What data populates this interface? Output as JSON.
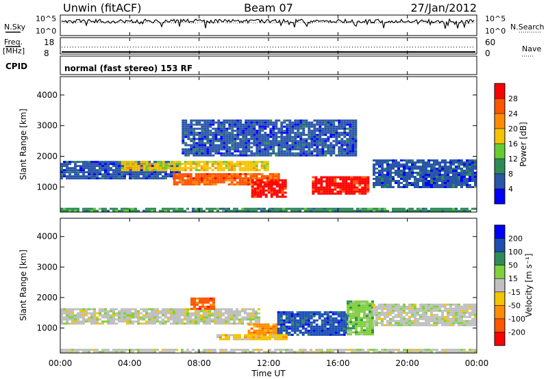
{
  "header": {
    "station": "Unwin (fitACF)",
    "beam": "Beam 07",
    "date": "27/Jan/2012"
  },
  "noise_panel": {
    "left_label": "N.Sky",
    "right_label": "N.Search",
    "left_ticks": [
      "10^5",
      "10^0"
    ],
    "right_ticks": [
      "10^5",
      "10^0"
    ]
  },
  "freq_panel": {
    "left_label": "Freq.",
    "left_unit": "[MHz]",
    "right_label": "Nave",
    "left_ticks": [
      "18",
      "8"
    ],
    "right_ticks": [
      "60",
      "0"
    ],
    "left_range": [
      8,
      18
    ],
    "right_range": [
      0,
      60
    ],
    "freq_value": 12,
    "nave_value": 0
  },
  "cpid": {
    "label": "CPID",
    "text": "normal (fast stereo) 153 RF"
  },
  "x_axis": {
    "label": "Time UT",
    "ticks": [
      "00:00",
      "04:00",
      "08:00",
      "12:00",
      "16:00",
      "20:00",
      "00:00"
    ],
    "tick_hours": [
      0,
      4,
      8,
      12,
      16,
      20,
      24
    ],
    "range": [
      0,
      24
    ]
  },
  "chart_data": [
    {
      "type": "heatmap",
      "name": "power",
      "ylabel": "Slant Range [km]",
      "ylim": [
        180,
        4600
      ],
      "yticks": [
        "1000",
        "2000",
        "3000",
        "4000"
      ],
      "ytick_values": [
        1000,
        2000,
        3000,
        4000
      ],
      "colorbar": {
        "label": "Power [dB]",
        "ticks": [
          "4",
          "8",
          "12",
          "16",
          "20",
          "24",
          "28"
        ],
        "levels": [
          {
            "range": [
              0,
              4
            ],
            "color": "#0000ff"
          },
          {
            "range": [
              4,
              8
            ],
            "color": "#2a56a8"
          },
          {
            "range": [
              8,
              12
            ],
            "color": "#2e8b57"
          },
          {
            "range": [
              12,
              16
            ],
            "color": "#66cc33"
          },
          {
            "range": [
              16,
              20
            ],
            "color": "#f4c400"
          },
          {
            "range": [
              20,
              24
            ],
            "color": "#ff8c00"
          },
          {
            "range": [
              24,
              28
            ],
            "color": "#ff5500"
          },
          {
            "range": [
              28,
              32
            ],
            "color": "#ff0000"
          }
        ]
      },
      "regions": [
        {
          "t0": 0.0,
          "t1": 6.8,
          "r0": 1300,
          "r1": 1850,
          "level": 1
        },
        {
          "t0": 3.5,
          "t1": 12.0,
          "r0": 1550,
          "r1": 1850,
          "level": 4
        },
        {
          "t0": 6.5,
          "t1": 12.5,
          "r0": 1050,
          "r1": 1450,
          "level": 6
        },
        {
          "t0": 11.0,
          "t1": 13.0,
          "r0": 650,
          "r1": 1250,
          "level": 7
        },
        {
          "t0": 14.5,
          "t1": 17.8,
          "r0": 750,
          "r1": 1350,
          "level": 7
        },
        {
          "t0": 7.0,
          "t1": 17.0,
          "r0": 2000,
          "r1": 3200,
          "level": 1
        },
        {
          "t0": 18.0,
          "t1": 24.0,
          "r0": 1000,
          "r1": 1900,
          "level": 1
        },
        {
          "t0": 0.0,
          "t1": 24.0,
          "r0": 200,
          "r1": 320,
          "level": 2
        }
      ]
    },
    {
      "type": "heatmap",
      "name": "velocity",
      "ylabel": "Slant Range [km]",
      "ylim": [
        180,
        4600
      ],
      "yticks": [
        "1000",
        "2000",
        "3000",
        "4000"
      ],
      "ytick_values": [
        1000,
        2000,
        3000,
        4000
      ],
      "colorbar": {
        "label": "Velocity [m s⁻¹]",
        "ticks": [
          "200",
          "100",
          "50",
          "15",
          "-15",
          "-50",
          "-100",
          "-200"
        ],
        "levels": [
          {
            "range": [
              200,
              250
            ],
            "color": "#0000ff"
          },
          {
            "range": [
              100,
              200
            ],
            "color": "#1c4fb4"
          },
          {
            "range": [
              50,
              100
            ],
            "color": "#2e8b57"
          },
          {
            "range": [
              15,
              50
            ],
            "color": "#7fd13b"
          },
          {
            "range": [
              -15,
              15
            ],
            "color": "#c0c0c0"
          },
          {
            "range": [
              -50,
              -15
            ],
            "color": "#f4c400"
          },
          {
            "range": [
              -100,
              -50
            ],
            "color": "#ff8c00"
          },
          {
            "range": [
              -200,
              -100
            ],
            "color": "#ff5500"
          },
          {
            "range": [
              -250,
              -200
            ],
            "color": "#ff0000"
          }
        ]
      },
      "regions": [
        {
          "t0": 0.0,
          "t1": 11.5,
          "r0": 1150,
          "r1": 1650,
          "level": 4
        },
        {
          "t0": 7.5,
          "t1": 8.8,
          "r0": 1650,
          "r1": 2000,
          "level": 7
        },
        {
          "t0": 10.8,
          "t1": 12.5,
          "r0": 800,
          "r1": 1150,
          "level": 6
        },
        {
          "t0": 12.5,
          "t1": 16.5,
          "r0": 800,
          "r1": 1550,
          "level": 1
        },
        {
          "t0": 16.5,
          "t1": 18.0,
          "r0": 800,
          "r1": 1900,
          "level": 3
        },
        {
          "t0": 9.0,
          "t1": 13.0,
          "r0": 600,
          "r1": 800,
          "level": 5
        },
        {
          "t0": 18.0,
          "t1": 24.0,
          "r0": 1100,
          "r1": 1800,
          "level": 4
        },
        {
          "t0": 0.0,
          "t1": 24.0,
          "r0": 200,
          "r1": 320,
          "level": 4
        }
      ]
    }
  ]
}
